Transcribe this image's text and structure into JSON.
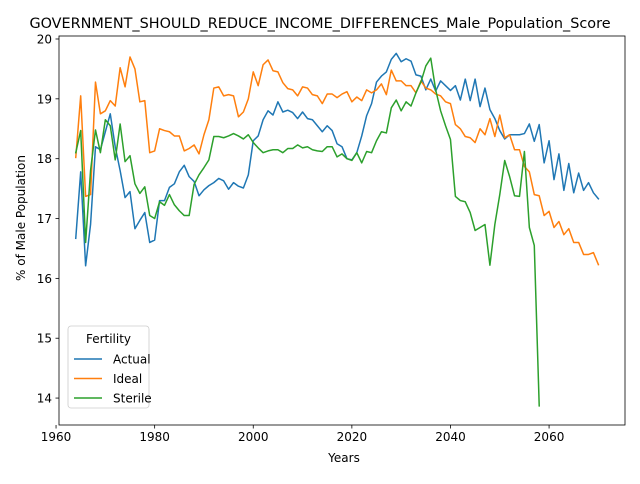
{
  "chart_data": {
    "type": "line",
    "title": "GOVERNMENT_SHOULD_REDUCE_INCOME_DIFFERENCES_Male_Population_Score",
    "xlabel": "Years",
    "ylabel": "% of Male Population",
    "xlim": [
      1960.6,
      2075.4
    ],
    "ylim": [
      13.55,
      20.05
    ],
    "xticks": [
      1960,
      1980,
      2000,
      2020,
      2040,
      2060
    ],
    "yticks": [
      14,
      15,
      16,
      17,
      18,
      19,
      20
    ],
    "grid": false,
    "legend": {
      "title": "Fertility",
      "placement": "lower-left"
    },
    "series": [
      {
        "name": "Actual",
        "color": "#1f77b4",
        "x": [
          1964,
          1965,
          1966,
          1967,
          1968,
          1969,
          1970,
          1971,
          1972,
          1973,
          1974,
          1975,
          1976,
          1977,
          1978,
          1979,
          1980,
          1981,
          1982,
          1983,
          1984,
          1985,
          1986,
          1987,
          1988,
          1989,
          1990,
          1991,
          1992,
          1993,
          1994,
          1995,
          1996,
          1997,
          1998,
          1999,
          2000,
          2001,
          2002,
          2003,
          2004,
          2005,
          2006,
          2007,
          2008,
          2009,
          2010,
          2011,
          2012,
          2013,
          2014,
          2015,
          2016,
          2017,
          2018,
          2019,
          2020,
          2021,
          2022,
          2023,
          2024,
          2025,
          2026,
          2027,
          2028,
          2029,
          2030,
          2031,
          2032,
          2033,
          2034,
          2035,
          2036,
          2037,
          2038,
          2039,
          2040,
          2041,
          2042,
          2043,
          2044,
          2045,
          2046,
          2047,
          2048,
          2049,
          2050,
          2051,
          2052,
          2053,
          2054,
          2055,
          2056,
          2057,
          2058,
          2059,
          2060,
          2061,
          2062,
          2063,
          2064,
          2065,
          2066,
          2067,
          2068,
          2069,
          2070
        ],
        "y": [
          16.67,
          17.78,
          16.21,
          16.9,
          18.2,
          18.15,
          18.45,
          18.75,
          18.2,
          17.8,
          17.35,
          17.45,
          16.83,
          16.97,
          17.1,
          16.6,
          16.64,
          17.3,
          17.3,
          17.52,
          17.58,
          17.78,
          17.89,
          17.7,
          17.62,
          17.38,
          17.48,
          17.55,
          17.6,
          17.67,
          17.63,
          17.49,
          17.6,
          17.54,
          17.51,
          17.73,
          18.3,
          18.38,
          18.65,
          18.8,
          18.73,
          18.95,
          18.78,
          18.81,
          18.77,
          18.67,
          18.78,
          18.67,
          18.65,
          18.55,
          18.45,
          18.55,
          18.47,
          18.25,
          18.2,
          18.0,
          17.98,
          18.1,
          18.38,
          18.72,
          18.92,
          19.28,
          19.38,
          19.45,
          19.66,
          19.76,
          19.62,
          19.67,
          19.63,
          19.4,
          19.38,
          19.15,
          19.33,
          19.13,
          19.3,
          19.22,
          19.14,
          19.22,
          18.98,
          19.33,
          18.97,
          19.33,
          18.87,
          19.18,
          18.82,
          18.67,
          18.47,
          18.33,
          18.4,
          18.4,
          18.4,
          18.42,
          18.58,
          18.29,
          18.57,
          17.93,
          18.3,
          17.65,
          18.08,
          17.47,
          17.92,
          17.43,
          17.76,
          17.47,
          17.6,
          17.43,
          17.33
        ]
      },
      {
        "name": "Ideal",
        "color": "#ff7f0e",
        "x": [
          1964,
          1965,
          1966,
          1967,
          1968,
          1969,
          1970,
          1971,
          1972,
          1973,
          1974,
          1975,
          1976,
          1977,
          1978,
          1979,
          1980,
          1981,
          1982,
          1983,
          1984,
          1985,
          1986,
          1987,
          1988,
          1989,
          1990,
          1991,
          1992,
          1993,
          1994,
          1995,
          1996,
          1997,
          1998,
          1999,
          2000,
          2001,
          2002,
          2003,
          2004,
          2005,
          2006,
          2007,
          2008,
          2009,
          2010,
          2011,
          2012,
          2013,
          2014,
          2015,
          2016,
          2017,
          2018,
          2019,
          2020,
          2021,
          2022,
          2023,
          2024,
          2025,
          2026,
          2027,
          2028,
          2029,
          2030,
          2031,
          2032,
          2033,
          2034,
          2035,
          2036,
          2037,
          2038,
          2039,
          2040,
          2041,
          2042,
          2043,
          2044,
          2045,
          2046,
          2047,
          2048,
          2049,
          2050,
          2051,
          2052,
          2053,
          2054,
          2055,
          2056,
          2057,
          2058,
          2059,
          2060,
          2061,
          2062,
          2063,
          2064,
          2065,
          2066,
          2067,
          2068,
          2069,
          2070
        ],
        "y": [
          18.02,
          19.05,
          17.37,
          17.4,
          19.28,
          18.75,
          18.8,
          18.97,
          18.88,
          19.52,
          19.2,
          19.7,
          19.5,
          18.95,
          18.97,
          18.1,
          18.13,
          18.5,
          18.47,
          18.45,
          18.38,
          18.38,
          18.13,
          18.17,
          18.23,
          18.08,
          18.4,
          18.65,
          19.18,
          19.2,
          19.05,
          19.07,
          19.05,
          18.7,
          18.78,
          19.0,
          19.45,
          19.22,
          19.57,
          19.65,
          19.47,
          19.45,
          19.27,
          19.17,
          19.15,
          19.05,
          19.2,
          19.18,
          19.07,
          19.05,
          18.92,
          19.08,
          19.08,
          19.02,
          19.08,
          19.12,
          18.95,
          19.03,
          18.97,
          19.15,
          19.1,
          19.15,
          19.25,
          19.07,
          19.48,
          19.3,
          19.3,
          19.22,
          19.22,
          19.1,
          19.3,
          19.18,
          19.15,
          19.08,
          19.05,
          18.95,
          18.92,
          18.57,
          18.5,
          18.37,
          18.35,
          18.27,
          18.5,
          18.4,
          18.67,
          18.37,
          18.73,
          18.35,
          18.4,
          18.15,
          18.15,
          17.87,
          17.78,
          17.4,
          17.38,
          17.05,
          17.12,
          16.85,
          16.95,
          16.73,
          16.83,
          16.6,
          16.6,
          16.4,
          16.4,
          16.43,
          16.23
        ]
      },
      {
        "name": "Sterile",
        "color": "#2ca02c",
        "x": [
          1964,
          1965,
          1966,
          1967,
          1968,
          1969,
          1970,
          1971,
          1972,
          1973,
          1974,
          1975,
          1976,
          1977,
          1978,
          1979,
          1980,
          1981,
          1982,
          1983,
          1984,
          1985,
          1986,
          1987,
          1988,
          1989,
          1990,
          1991,
          1992,
          1993,
          1994,
          1995,
          1996,
          1997,
          1998,
          1999,
          2000,
          2001,
          2002,
          2003,
          2004,
          2005,
          2006,
          2007,
          2008,
          2009,
          2010,
          2011,
          2012,
          2013,
          2014,
          2015,
          2016,
          2017,
          2018,
          2019,
          2020,
          2021,
          2022,
          2023,
          2024,
          2025,
          2026,
          2027,
          2028,
          2029,
          2030,
          2031,
          2032,
          2033,
          2034,
          2035,
          2036,
          2037,
          2038,
          2039,
          2040,
          2041,
          2042,
          2043,
          2044,
          2045,
          2046,
          2047,
          2048,
          2049,
          2050,
          2051,
          2052,
          2053,
          2054,
          2055,
          2056,
          2057,
          2058
        ],
        "y": [
          18.1,
          18.47,
          16.6,
          17.8,
          18.48,
          18.1,
          18.65,
          18.55,
          17.98,
          18.58,
          17.95,
          18.05,
          17.58,
          17.42,
          17.53,
          17.05,
          17.0,
          17.28,
          17.22,
          17.4,
          17.23,
          17.13,
          17.05,
          17.05,
          17.57,
          17.73,
          17.85,
          17.98,
          18.37,
          18.37,
          18.35,
          18.38,
          18.42,
          18.38,
          18.33,
          18.4,
          18.27,
          18.18,
          18.1,
          18.13,
          18.15,
          18.15,
          18.1,
          18.17,
          18.17,
          18.23,
          18.18,
          18.2,
          18.15,
          18.13,
          18.12,
          18.2,
          18.2,
          18.03,
          18.08,
          18.0,
          17.97,
          18.1,
          17.93,
          18.12,
          18.1,
          18.3,
          18.45,
          18.43,
          18.85,
          18.98,
          18.8,
          18.95,
          18.88,
          19.1,
          19.28,
          19.55,
          19.68,
          19.15,
          18.8,
          18.55,
          18.32,
          17.37,
          17.3,
          17.28,
          17.1,
          16.8,
          16.85,
          16.9,
          16.22,
          16.9,
          17.4,
          17.97,
          17.7,
          17.38,
          17.37,
          18.12,
          16.85,
          16.55,
          13.87
        ]
      }
    ]
  }
}
